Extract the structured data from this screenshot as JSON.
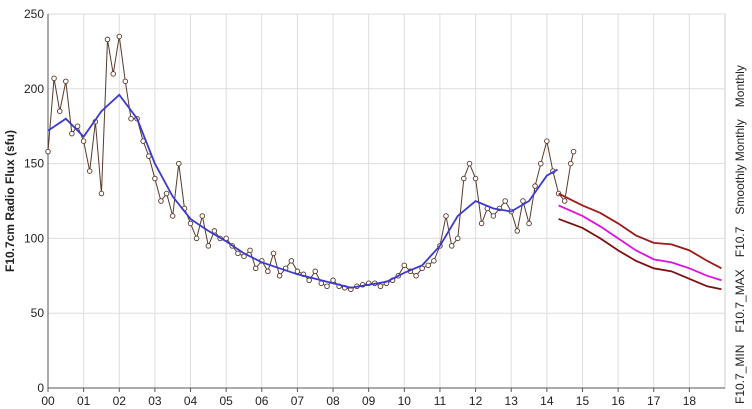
{
  "chart_data": {
    "type": "line",
    "y_label": "F10.7cm Radio Flux (sfu)",
    "xlim": [
      2000,
      2019
    ],
    "ylim": [
      0,
      250
    ],
    "xticks": [
      {
        "value": 2000,
        "label": "00"
      },
      {
        "value": 2001,
        "label": "01"
      },
      {
        "value": 2002,
        "label": "02"
      },
      {
        "value": 2003,
        "label": "03"
      },
      {
        "value": 2004,
        "label": "04"
      },
      {
        "value": 2005,
        "label": "05"
      },
      {
        "value": 2006,
        "label": "06"
      },
      {
        "value": 2007,
        "label": "07"
      },
      {
        "value": 2008,
        "label": "08"
      },
      {
        "value": 2009,
        "label": "09"
      },
      {
        "value": 2010,
        "label": "10"
      },
      {
        "value": 2011,
        "label": "11"
      },
      {
        "value": 2012,
        "label": "12"
      },
      {
        "value": 2013,
        "label": "13"
      },
      {
        "value": 2014,
        "label": "14"
      },
      {
        "value": 2015,
        "label": "15"
      },
      {
        "value": 2016,
        "label": "16"
      },
      {
        "value": 2017,
        "label": "17"
      },
      {
        "value": 2018,
        "label": "18"
      }
    ],
    "yticks": [
      0,
      50,
      100,
      150,
      200,
      250
    ],
    "grid": true,
    "series": [
      {
        "name": "Monthly",
        "color": "#5a3a2a",
        "markers": true,
        "x": [
          2000,
          2000.17,
          2000.33,
          2000.5,
          2000.67,
          2000.83,
          2001,
          2001.17,
          2001.33,
          2001.5,
          2001.67,
          2001.83,
          2002,
          2002.17,
          2002.33,
          2002.5,
          2002.67,
          2002.83,
          2003,
          2003.17,
          2003.33,
          2003.5,
          2003.67,
          2003.83,
          2004,
          2004.17,
          2004.33,
          2004.5,
          2004.67,
          2004.83,
          2005,
          2005.17,
          2005.33,
          2005.5,
          2005.67,
          2005.83,
          2006,
          2006.17,
          2006.33,
          2006.5,
          2006.67,
          2006.83,
          2007,
          2007.17,
          2007.33,
          2007.5,
          2007.67,
          2007.83,
          2008,
          2008.17,
          2008.33,
          2008.5,
          2008.67,
          2008.83,
          2009,
          2009.17,
          2009.33,
          2009.5,
          2009.67,
          2009.83,
          2010,
          2010.17,
          2010.33,
          2010.5,
          2010.67,
          2010.83,
          2011,
          2011.17,
          2011.33,
          2011.5,
          2011.67,
          2011.83,
          2012,
          2012.17,
          2012.33,
          2012.5,
          2012.67,
          2012.83,
          2013,
          2013.17,
          2013.33,
          2013.5,
          2013.67,
          2013.83,
          2014,
          2014.17,
          2014.33,
          2014.5,
          2014.67,
          2014.75
        ],
        "values": [
          158,
          207,
          185,
          205,
          170,
          175,
          165,
          145,
          178,
          130,
          233,
          210,
          235,
          205,
          180,
          180,
          165,
          155,
          140,
          125,
          130,
          115,
          150,
          120,
          110,
          100,
          115,
          95,
          105,
          100,
          100,
          95,
          90,
          88,
          92,
          80,
          85,
          78,
          90,
          75,
          80,
          85,
          78,
          76,
          72,
          78,
          70,
          68,
          72,
          68,
          67,
          66,
          68,
          69,
          70,
          70,
          68,
          70,
          72,
          75,
          82,
          78,
          75,
          80,
          82,
          85,
          95,
          115,
          95,
          100,
          140,
          150,
          140,
          110,
          120,
          115,
          120,
          125,
          118,
          105,
          125,
          110,
          135,
          150,
          165,
          145,
          130,
          125,
          150,
          158
        ]
      },
      {
        "name": "Smoothly Monthly",
        "color": "#3a3ad0",
        "markers": false,
        "x": [
          2000,
          2000.5,
          2001,
          2001.5,
          2002,
          2002.5,
          2003,
          2003.5,
          2004,
          2004.5,
          2005,
          2005.5,
          2006,
          2006.5,
          2007,
          2007.5,
          2008,
          2008.5,
          2009,
          2009.5,
          2010,
          2010.5,
          2011,
          2011.5,
          2012,
          2012.5,
          2013,
          2013.5,
          2014,
          2014.3
        ],
        "values": [
          172,
          180,
          168,
          185,
          196,
          180,
          150,
          128,
          113,
          105,
          98,
          90,
          84,
          80,
          76,
          73,
          70,
          67,
          69,
          71,
          77,
          82,
          95,
          115,
          125,
          120,
          118,
          125,
          142,
          146
        ]
      },
      {
        "name": "F10.7",
        "color": "#e010e0",
        "markers": false,
        "x": [
          2014.33,
          2015,
          2015.5,
          2016,
          2016.5,
          2017,
          2017.5,
          2018,
          2018.5,
          2018.9
        ],
        "values": [
          122,
          115,
          108,
          100,
          92,
          86,
          84,
          80,
          75,
          72
        ]
      },
      {
        "name": "F10.7_MAX",
        "color": "#9b1b1b",
        "markers": false,
        "x": [
          2014.33,
          2015,
          2015.5,
          2016,
          2016.5,
          2017,
          2017.5,
          2018,
          2018.5,
          2018.9
        ],
        "values": [
          130,
          122,
          117,
          110,
          102,
          97,
          96,
          92,
          85,
          80
        ]
      },
      {
        "name": "F10.7_MIN",
        "color": "#7a1010",
        "markers": false,
        "x": [
          2014.33,
          2015,
          2015.5,
          2016,
          2016.5,
          2017,
          2017.5,
          2018,
          2018.5,
          2018.9
        ],
        "values": [
          113,
          107,
          100,
          92,
          85,
          80,
          78,
          73,
          68,
          66
        ]
      }
    ]
  }
}
